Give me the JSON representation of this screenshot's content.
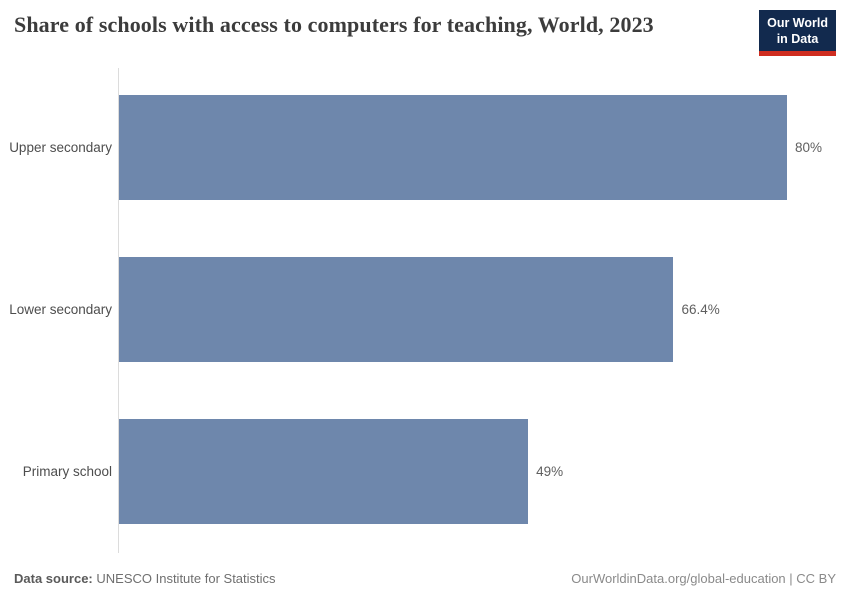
{
  "header": {
    "title": "Share of schools with access to computers for teaching, World, 2023",
    "logo": {
      "line1": "Our World",
      "line2": "in Data"
    }
  },
  "chart_data": {
    "type": "bar",
    "orientation": "horizontal",
    "title": "Share of schools with access to computers for teaching, World, 2023",
    "categories": [
      "Upper secondary",
      "Lower secondary",
      "Primary school"
    ],
    "values": [
      80,
      66.4,
      49
    ],
    "value_labels": [
      "80%",
      "66.4%",
      "49%"
    ],
    "unit": "%",
    "xlim": [
      0,
      80
    ],
    "grid": false,
    "legend": false,
    "bar_color": "#6e87ac"
  },
  "footer": {
    "data_source_label": "Data source:",
    "data_source_value": "UNESCO Institute for Statistics",
    "credit": "OurWorldinData.org/global-education | CC BY"
  },
  "colors": {
    "bar": "#6e87ac",
    "logo_bg": "#122a4e",
    "logo_red": "#cf2d20",
    "title_text": "#3c3c3c",
    "axis_line": "#dcdcdc"
  }
}
